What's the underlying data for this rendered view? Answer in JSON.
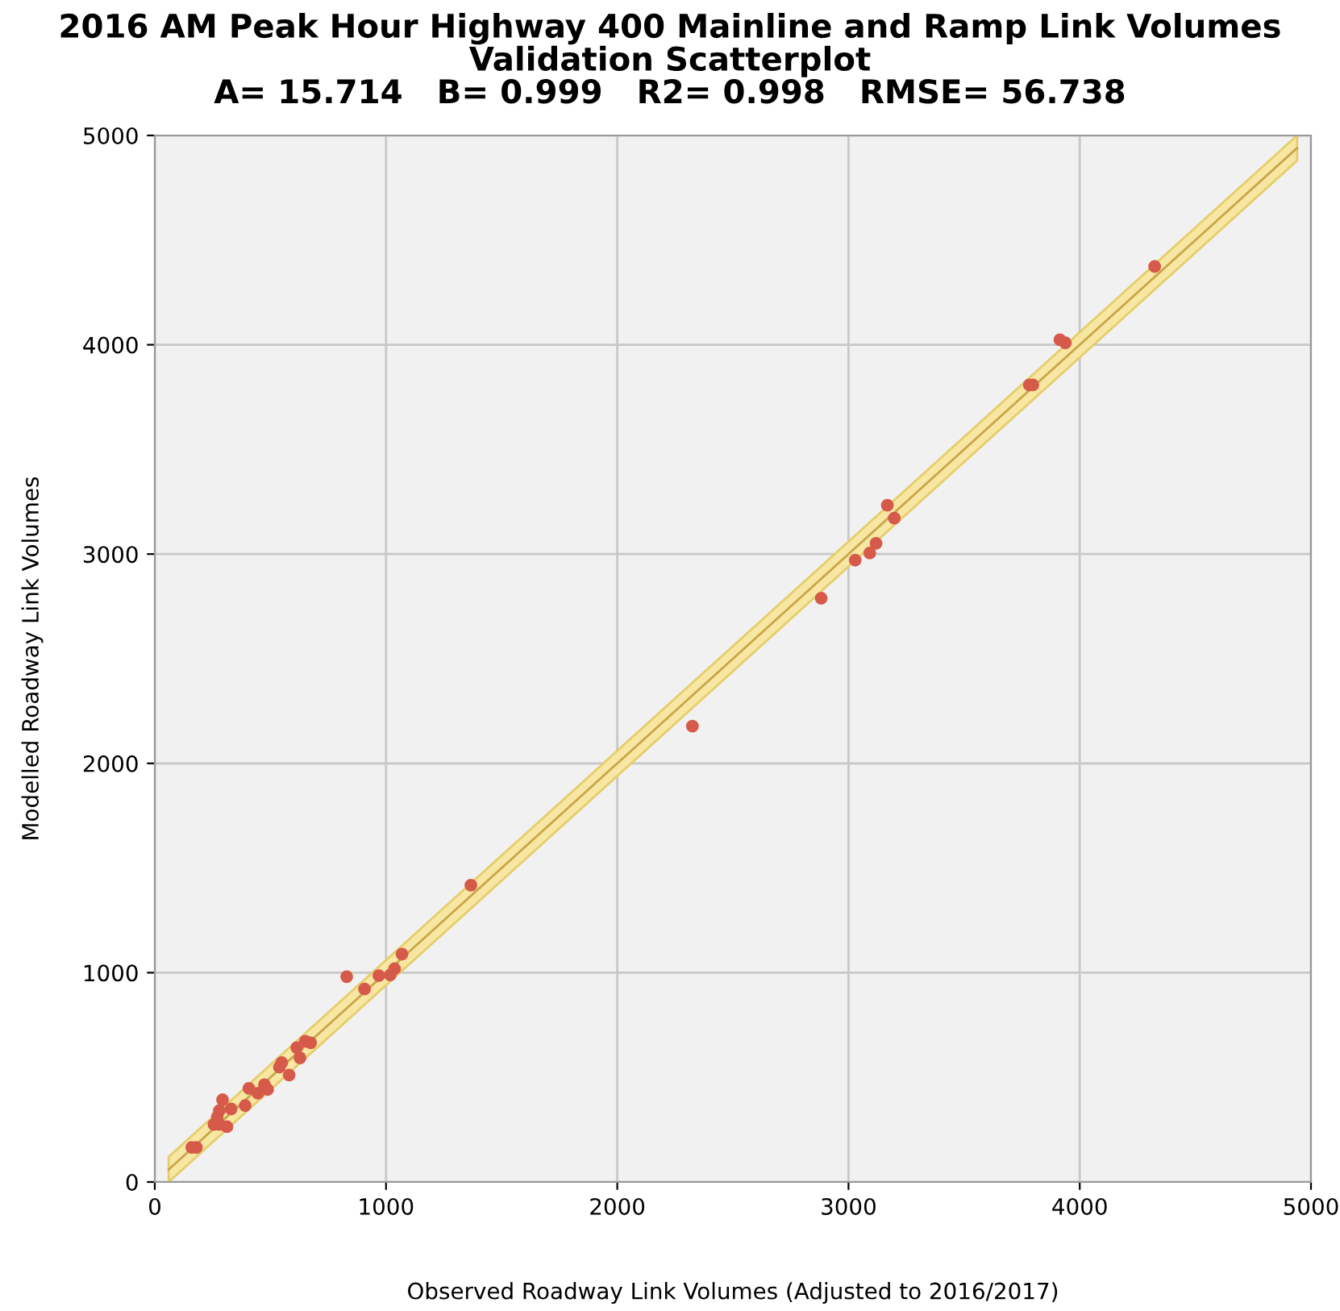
{
  "chart_data": {
    "type": "scatter",
    "title": "2016 AM Peak Hour Highway 400 Mainline and Ramp Link Volumes\nValidation Scatterplot\nA= 15.714   B= 0.999   R2= 0.998   RMSE= 56.738",
    "xlabel": "Observed Roadway Link Volumes (Adjusted to 2016/2017)",
    "ylabel": "Modelled Roadway Link Volumes",
    "xlim": [
      0,
      5000
    ],
    "ylim": [
      0,
      5000
    ],
    "xticks": [
      0,
      1000,
      2000,
      3000,
      4000,
      5000
    ],
    "yticks": [
      0,
      1000,
      2000,
      3000,
      4000,
      5000
    ],
    "grid": true,
    "series": [
      {
        "type": "line",
        "color": "#c9a54a",
        "x": [
          60,
          4940
        ],
        "values": [
          60,
          4940
        ],
        "lower": [
          0,
          4880
        ],
        "upper": [
          120,
          5000
        ]
      },
      {
        "color": "#d65a4a",
        "marker": "circle",
        "x": [
          160,
          180,
          293,
          279,
          270,
          256,
          279,
          312,
          330,
          391,
          407,
          446,
          474,
          488,
          539,
          549,
          581,
          614,
          628,
          651,
          674,
          830,
          907,
          969,
          1018,
          1037,
          1069,
          1367,
          2325,
          2882,
          3029,
          3092,
          3119,
          3168,
          3198,
          3782,
          3797,
          3914,
          3938,
          4324
        ],
        "values": [
          165,
          165,
          393,
          341,
          311,
          275,
          275,
          264,
          349,
          365,
          447,
          424,
          465,
          442,
          549,
          570,
          511,
          642,
          593,
          673,
          665,
          981,
          922,
          986,
          989,
          1019,
          1089,
          1418,
          2178,
          2789,
          2971,
          3005,
          3051,
          3233,
          3172,
          3808,
          3808,
          4024,
          4009,
          4374
        ]
      }
    ]
  }
}
